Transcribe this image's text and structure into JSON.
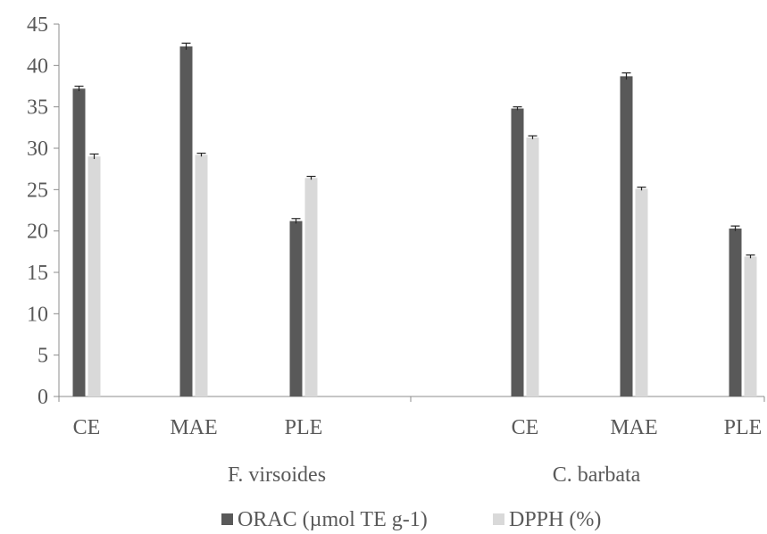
{
  "chart_data": {
    "type": "bar",
    "title": "",
    "xlabel": "",
    "ylabel": "",
    "ylim": [
      0,
      45
    ],
    "ytick_step": 5,
    "grid": false,
    "legend_position": "bottom",
    "groups": [
      {
        "name": "F. virsoides",
        "categories": [
          "CE",
          "MAE",
          "PLE"
        ]
      },
      {
        "name": "C. barbata",
        "categories": [
          "CE",
          "MAE",
          "PLE"
        ]
      }
    ],
    "series": [
      {
        "name": "ORAC (µmol TE g-1)",
        "color": "#595959",
        "values": [
          37.2,
          42.3,
          21.2,
          34.8,
          38.7,
          20.3
        ],
        "errors": [
          0.3,
          0.4,
          0.3,
          0.2,
          0.4,
          0.3
        ]
      },
      {
        "name": "DPPH (%)",
        "color": "#d9d9d9",
        "values": [
          29.0,
          29.2,
          26.4,
          31.3,
          25.1,
          16.9
        ],
        "errors": [
          0.3,
          0.2,
          0.2,
          0.2,
          0.2,
          0.2
        ]
      }
    ]
  }
}
